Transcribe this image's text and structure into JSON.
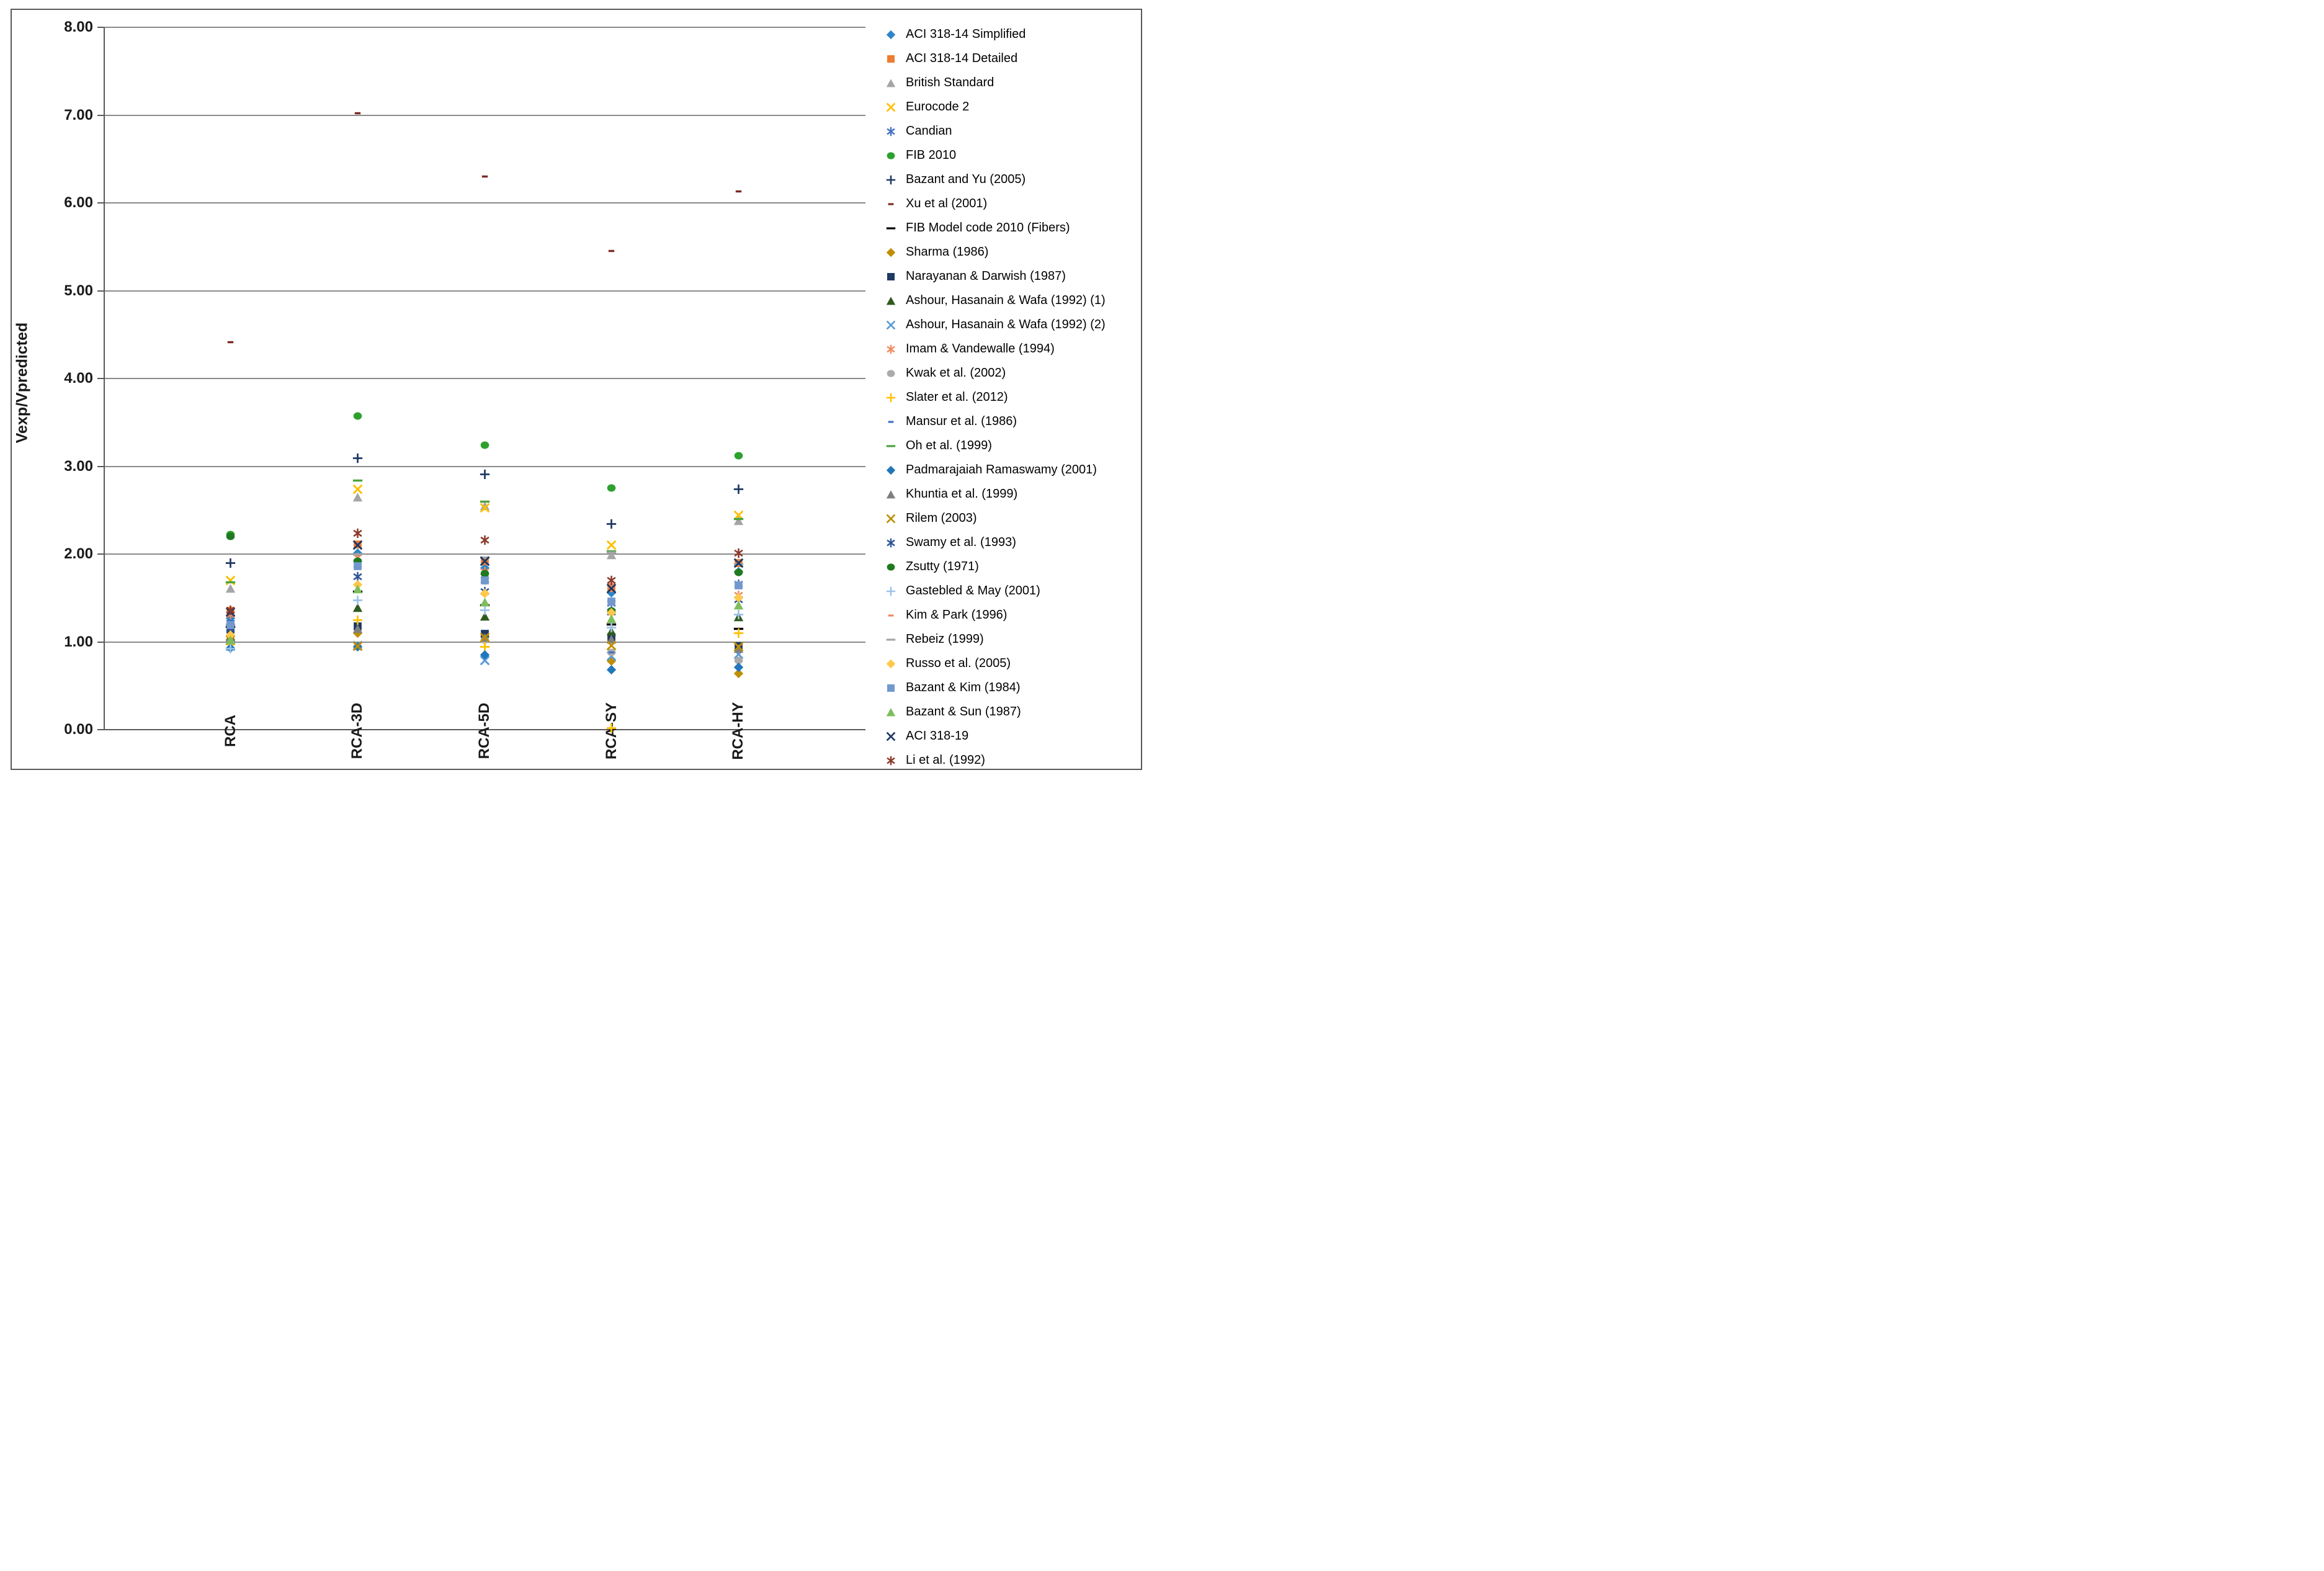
{
  "figure": {
    "background": "#FFFFFF",
    "border_color": "#595959",
    "gridline_color": "#8A8A8A",
    "axis_color": "#595959",
    "text_color": "#1A1A1A"
  },
  "chart_data": {
    "type": "scatter",
    "title": "",
    "xlabel": "",
    "ylabel": "Vexp/Vpredicted",
    "ylim": [
      0,
      8
    ],
    "ytick_step": 1,
    "ytick_labels": [
      "0.00",
      "1.00",
      "2.00",
      "3.00",
      "4.00",
      "5.00",
      "6.00",
      "7.00",
      "8.00"
    ],
    "grid": "horizontal",
    "legend_position": "right",
    "categories": [
      "RCA",
      "RCA-3D",
      "RCA-5D",
      "RCA-SY",
      "RCA-HY"
    ],
    "series": [
      {
        "name": "ACI 318-14 Simplified",
        "marker": "diamond",
        "color": "#2E86C8",
        "values": [
          1.27,
          2.01,
          1.84,
          1.56,
          1.8
        ]
      },
      {
        "name": "ACI 318-14 Detailed",
        "marker": "square",
        "color": "#ED7D31",
        "values": [
          1.35,
          2.11,
          1.92,
          1.62,
          1.9
        ]
      },
      {
        "name": "British Standard",
        "marker": "triangle",
        "color": "#A5A5A5",
        "values": [
          1.61,
          2.65,
          2.55,
          1.99,
          2.38
        ]
      },
      {
        "name": "Eurocode 2",
        "marker": "x",
        "color": "#FFC000",
        "values": [
          1.7,
          2.74,
          2.53,
          2.1,
          2.44
        ]
      },
      {
        "name": "Candian",
        "marker": "asterisk",
        "color": "#4472C4",
        "values": [
          1.21,
          1.88,
          1.71,
          1.44,
          1.66
        ]
      },
      {
        "name": "FIB 2010",
        "marker": "circle",
        "color": "#2DA12D",
        "values": [
          2.22,
          3.57,
          3.24,
          2.75,
          3.12
        ]
      },
      {
        "name": "Bazant and Yu (2005)",
        "marker": "plus",
        "color": "#1F3864",
        "values": [
          1.9,
          3.09,
          2.91,
          2.34,
          2.74
        ]
      },
      {
        "name": "Xu et al (2001)",
        "marker": "dash",
        "color": "#7B2A23",
        "values": [
          4.41,
          7.02,
          6.3,
          5.45,
          6.13
        ]
      },
      {
        "name": "FIB Model code 2010 (Fibers)",
        "marker": "longdash",
        "color": "#000000",
        "values": [
          1.17,
          1.57,
          1.42,
          1.2,
          1.15
        ]
      },
      {
        "name": "Sharma (1986)",
        "marker": "diamond",
        "color": "#BF8F00",
        "values": [
          1.03,
          1.1,
          1.06,
          0.78,
          0.64
        ]
      },
      {
        "name": "Narayanan & Darwish (1987)",
        "marker": "square",
        "color": "#1F3864",
        "values": [
          1.14,
          1.18,
          1.09,
          1.06,
          0.95
        ]
      },
      {
        "name": "Ashour, Hasanain & Wafa (1992) (1)",
        "marker": "triangle",
        "color": "#2F5B1F",
        "values": [
          1.06,
          1.39,
          1.29,
          1.12,
          1.28
        ]
      },
      {
        "name": "Ashour, Hasanain & Wafa (1992) (2)",
        "marker": "x",
        "color": "#5B9BD5",
        "values": [
          0.95,
          0.96,
          0.79,
          0.84,
          0.86
        ]
      },
      {
        "name": "Imam & Vandewalle (1994)",
        "marker": "asterisk",
        "color": "#F08A5E",
        "values": [
          1.31,
          1.96,
          1.8,
          1.64,
          1.53
        ]
      },
      {
        "name": "Kwak et al. (2002)",
        "marker": "circle",
        "color": "#ABABAB",
        "values": [
          1.0,
          0.94,
          1.02,
          0.88,
          0.79
        ]
      },
      {
        "name": "Slater et al. (2012)",
        "marker": "plus",
        "color": "#FFC000",
        "values": [
          0.97,
          1.25,
          0.94,
          0.02,
          1.1
        ]
      },
      {
        "name": "Mansur et al. (1986)",
        "marker": "dash",
        "color": "#4472C4",
        "values": [
          1.18,
          1.85,
          1.69,
          0.88,
          1.62
        ]
      },
      {
        "name": "Oh et al. (1999)",
        "marker": "longdash",
        "color": "#4CA33F",
        "values": [
          1.68,
          2.84,
          2.6,
          2.03,
          2.4
        ]
      },
      {
        "name": "Padmarajaiah Ramaswamy (2001)",
        "marker": "diamond",
        "color": "#2277BB",
        "values": [
          0.93,
          0.94,
          0.85,
          0.68,
          0.71
        ]
      },
      {
        "name": "Khuntia et al. (1999)",
        "marker": "triangle",
        "color": "#7F7F7F",
        "values": [
          1.05,
          1.15,
          1.05,
          1.03,
          0.92
        ]
      },
      {
        "name": "Rilem (2003)",
        "marker": "x",
        "color": "#BF8F00",
        "values": [
          1.02,
          0.95,
          1.05,
          0.96,
          0.94
        ]
      },
      {
        "name": "Swamy et al. (1993)",
        "marker": "asterisk",
        "color": "#2F5597",
        "values": [
          1.15,
          1.74,
          1.57,
          1.34,
          1.48
        ]
      },
      {
        "name": "Zsutty (1971)",
        "marker": "circle",
        "color": "#1F7A1F",
        "values": [
          2.2,
          1.92,
          1.78,
          1.35,
          1.79
        ]
      },
      {
        "name": "Gastebled & May (2001)",
        "marker": "plus",
        "color": "#9DC3E6",
        "values": [
          0.92,
          1.47,
          1.36,
          1.16,
          1.31
        ]
      },
      {
        "name": "Kim & Park (1996)",
        "marker": "dash",
        "color": "#F08A5E",
        "values": [
          1.33,
          2.09,
          1.68,
          1.58,
          1.89
        ]
      },
      {
        "name": "Rebeiz (1999)",
        "marker": "longdash",
        "color": "#A5A5A5",
        "values": [
          1.2,
          2.0,
          1.96,
          2.02,
          1.88
        ]
      },
      {
        "name": "Russo et al. (2005)",
        "marker": "diamond",
        "color": "#FFC84A",
        "values": [
          1.08,
          1.65,
          1.55,
          1.33,
          1.5
        ]
      },
      {
        "name": "Bazant & Kim (1984)",
        "marker": "square",
        "color": "#7398CE",
        "values": [
          1.19,
          1.86,
          1.7,
          1.46,
          1.64
        ]
      },
      {
        "name": "Bazant & Sun (1987)",
        "marker": "triangle",
        "color": "#7CBE5C",
        "values": [
          1.02,
          1.6,
          1.45,
          1.26,
          1.42
        ]
      },
      {
        "name": "ACI 318-19",
        "marker": "x",
        "color": "#1F3864",
        "values": [
          1.34,
          2.1,
          1.92,
          1.61,
          1.9
        ]
      },
      {
        "name": "Li et al. (1992)",
        "marker": "asterisk",
        "color": "#8B3A2B",
        "values": [
          1.36,
          2.24,
          2.16,
          1.7,
          2.01
        ]
      }
    ]
  }
}
